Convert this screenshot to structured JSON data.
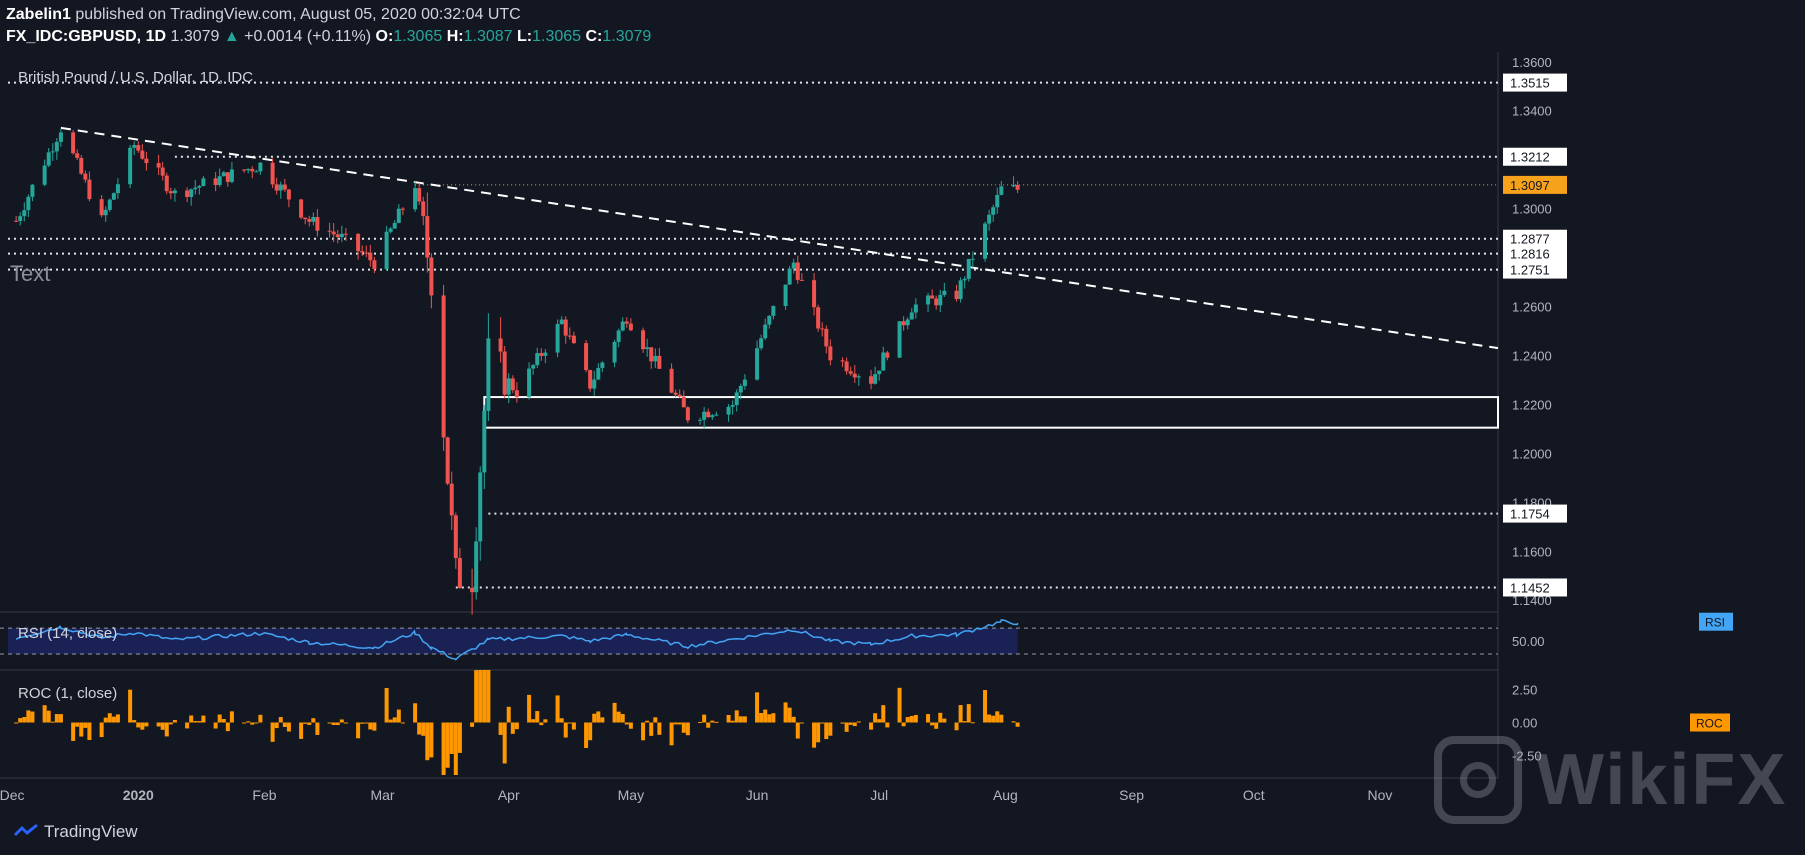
{
  "header": {
    "author": "Zabelin1",
    "published": "published on TradingView.com, August 05, 2020 00:32:04 UTC",
    "symbol": "FX_IDC:GBPUSD, 1D",
    "last": "1.3079",
    "change": "+0.0014 (+0.11%)",
    "o_label": "O:",
    "o": "1.3065",
    "h_label": "H:",
    "h": "1.3087",
    "l_label": "L:",
    "l": "1.3065",
    "c_label": "C:",
    "c": "1.3079"
  },
  "chart_title": "British Pound / U.S. Dollar, 1D, IDC",
  "text_annotation": "Text",
  "footer": {
    "brand": "TradingView"
  },
  "watermark": {
    "text": "WikiFX"
  },
  "colors": {
    "background": "#131722",
    "up": "#26a69a",
    "down": "#ef5350",
    "price_tag": "#f7a21b",
    "rsi_line": "#42a5f5",
    "rsi_band": "#1a2255",
    "roc_bar": "#ff9800",
    "axis_text": "#b2b5be"
  },
  "chart_data": [
    {
      "type": "candlestick",
      "title": "British Pound / U.S. Dollar, 1D, IDC",
      "x_ticks": [
        "Dec",
        "2020",
        "Feb",
        "Mar",
        "Apr",
        "May",
        "Jun",
        "Jul",
        "Aug",
        "Sep",
        "Oct",
        "Nov"
      ],
      "y_ticks": [
        "1.3600",
        "1.3400",
        "1.3000",
        "1.2600",
        "1.2400",
        "1.2200",
        "1.2000",
        "1.1800",
        "1.1600",
        "1.1400"
      ],
      "ylim": [
        1.136,
        1.364
      ],
      "price_tags": [
        "1.3515",
        "1.3212",
        "1.3097",
        "1.2877",
        "1.2816",
        "1.2751",
        "1.1754",
        "1.1452"
      ],
      "horizontal_levels": [
        1.3515,
        1.3212,
        1.2877,
        1.2816,
        1.2751,
        1.1754,
        1.1452
      ],
      "current_price_line": 1.3097,
      "support_zone": [
        1.2105,
        1.223
      ],
      "trendline": {
        "from": [
          "2019-12-13",
          1.333
        ],
        "to": [
          "2020-11-30",
          1.243
        ]
      },
      "ohlc_segments": [
        [
          "2019-12-02",
          1.29,
          1.3
        ],
        [
          "2019-12-13",
          1.333
        ],
        [
          "2019-12-23",
          1.295
        ],
        [
          "2019-12-31",
          1.326
        ],
        [
          "2020-01-10",
          1.306
        ],
        [
          "2020-01-31",
          1.318
        ],
        [
          "2020-02-12",
          1.295
        ],
        [
          "2020-02-20",
          1.288
        ],
        [
          "2020-02-28",
          1.278
        ],
        [
          "2020-03-09",
          1.31
        ],
        [
          "2020-03-13",
          1.272
        ],
        [
          "2020-03-19",
          1.15
        ],
        [
          "2020-03-23",
          1.15
        ],
        [
          "2020-03-27",
          1.24
        ],
        [
          "2020-04-03",
          1.225
        ],
        [
          "2020-04-14",
          1.254
        ],
        [
          "2020-04-21",
          1.228
        ],
        [
          "2020-04-30",
          1.256
        ],
        [
          "2020-05-15",
          1.215
        ],
        [
          "2020-05-26",
          1.22
        ],
        [
          "2020-06-10",
          1.278
        ],
        [
          "2020-06-19",
          1.24
        ],
        [
          "2020-06-29",
          1.23
        ],
        [
          "2020-07-09",
          1.26
        ],
        [
          "2020-07-20",
          1.265
        ],
        [
          "2020-07-31",
          1.308
        ],
        [
          "2020-08-04",
          1.3079
        ]
      ]
    },
    {
      "type": "line",
      "name": "RSI (14, close)",
      "tag": "RSI",
      "y_ticks": [
        "50.00"
      ],
      "bands": [
        30,
        70
      ],
      "ylim": [
        10,
        95
      ],
      "values_path": [
        [
          "2019-12-02",
          55
        ],
        [
          "2019-12-13",
          72
        ],
        [
          "2019-12-23",
          55
        ],
        [
          "2019-12-31",
          63
        ],
        [
          "2020-01-10",
          52
        ],
        [
          "2020-01-31",
          62
        ],
        [
          "2020-02-12",
          48
        ],
        [
          "2020-02-28",
          40
        ],
        [
          "2020-03-09",
          63
        ],
        [
          "2020-03-13",
          40
        ],
        [
          "2020-03-19",
          22
        ],
        [
          "2020-03-27",
          52
        ],
        [
          "2020-04-14",
          58
        ],
        [
          "2020-04-21",
          50
        ],
        [
          "2020-04-30",
          60
        ],
        [
          "2020-05-15",
          42
        ],
        [
          "2020-06-10",
          68
        ],
        [
          "2020-06-19",
          50
        ],
        [
          "2020-06-29",
          45
        ],
        [
          "2020-07-09",
          58
        ],
        [
          "2020-07-20",
          60
        ],
        [
          "2020-07-31",
          80
        ],
        [
          "2020-08-04",
          78
        ]
      ]
    },
    {
      "type": "bar",
      "name": "ROC (1, close)",
      "tag": "ROC",
      "y_ticks": [
        "2.50",
        "0.00",
        "-2.50"
      ],
      "ylim": [
        -4.0,
        4.0
      ],
      "highlights": [
        [
          "2020-03-19",
          -3.7
        ],
        [
          "2020-03-25",
          2.4
        ],
        [
          "2020-03-27",
          2.2
        ]
      ]
    }
  ]
}
